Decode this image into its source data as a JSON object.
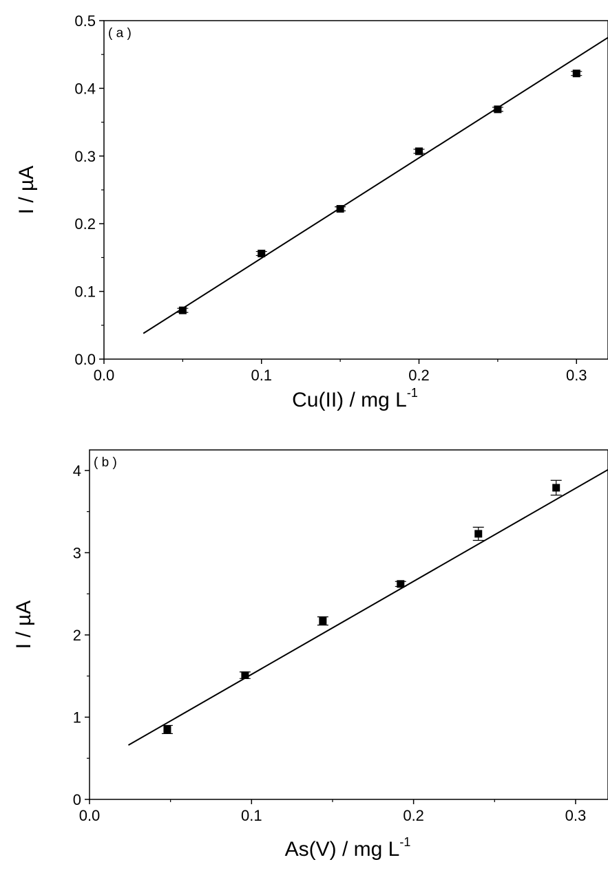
{
  "chart_data": [
    {
      "type": "scatter",
      "panel_label": "( a )",
      "xlabel": "Cu(II) / mg L",
      "xlabel_sup": "-1",
      "ylabel": "I / µA",
      "xlim": [
        0.0,
        0.32
      ],
      "ylim": [
        0.0,
        0.5
      ],
      "xticks": [
        0.0,
        0.1,
        0.2,
        0.3
      ],
      "xtick_labels": [
        "0.0",
        "0.1",
        "0.2",
        "0.3"
      ],
      "yticks": [
        0.0,
        0.1,
        0.2,
        0.3,
        0.4,
        0.5
      ],
      "ytick_labels": [
        "0.0",
        "0.1",
        "0.2",
        "0.3",
        "0.4",
        "0.5"
      ],
      "points": [
        {
          "x": 0.05,
          "y": 0.072,
          "err": 0.003
        },
        {
          "x": 0.1,
          "y": 0.156,
          "err": 0.003
        },
        {
          "x": 0.15,
          "y": 0.222,
          "err": 0.003
        },
        {
          "x": 0.2,
          "y": 0.307,
          "err": 0.003
        },
        {
          "x": 0.25,
          "y": 0.369,
          "err": 0.003
        },
        {
          "x": 0.3,
          "y": 0.422,
          "err": 0.003
        }
      ],
      "fit": {
        "x": [
          0.025,
          0.32
        ],
        "y": [
          0.038,
          0.475
        ]
      },
      "grid": false
    },
    {
      "type": "scatter",
      "panel_label": "( b )",
      "xlabel": "As(V) / mg L",
      "xlabel_sup": "-1",
      "ylabel": "I / µA",
      "xlim": [
        0.0,
        0.32
      ],
      "ylim": [
        0,
        4.25
      ],
      "xticks": [
        0.0,
        0.1,
        0.2,
        0.3
      ],
      "xtick_labels": [
        "0.0",
        "0.1",
        "0.2",
        "0.3"
      ],
      "yticks": [
        0,
        1,
        2,
        3,
        4
      ],
      "ytick_labels": [
        "0",
        "1",
        "2",
        "3",
        "4"
      ],
      "points": [
        {
          "x": 0.048,
          "y": 0.85,
          "err": 0.05
        },
        {
          "x": 0.096,
          "y": 1.51,
          "err": 0.04
        },
        {
          "x": 0.144,
          "y": 2.17,
          "err": 0.05
        },
        {
          "x": 0.192,
          "y": 2.62,
          "err": 0.03
        },
        {
          "x": 0.24,
          "y": 3.23,
          "err": 0.08
        },
        {
          "x": 0.288,
          "y": 3.79,
          "err": 0.09
        }
      ],
      "fit": {
        "x": [
          0.024,
          0.32
        ],
        "y": [
          0.66,
          4.01
        ]
      },
      "grid": false
    }
  ]
}
